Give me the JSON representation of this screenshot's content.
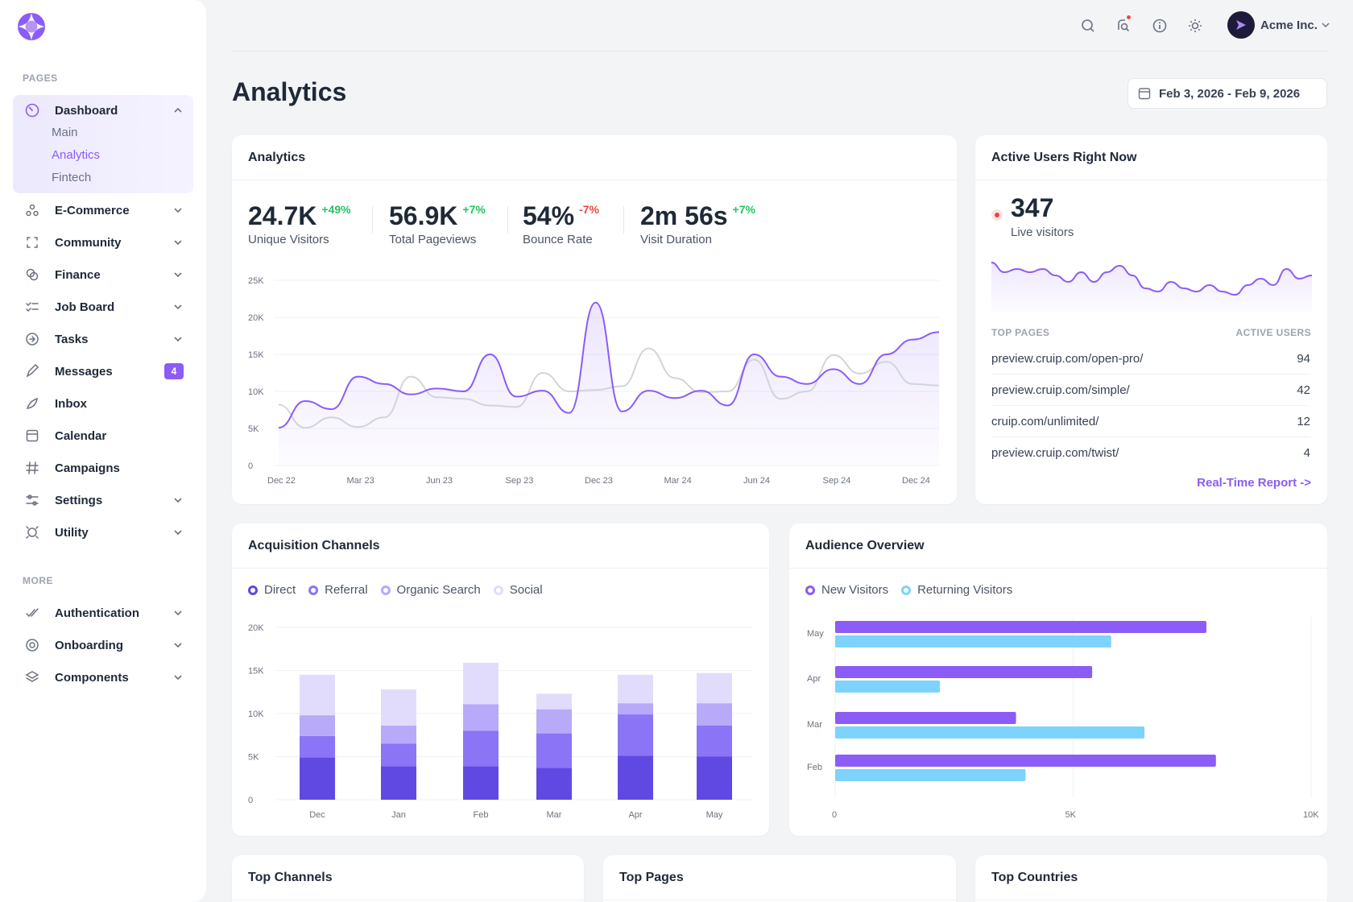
{
  "sidebar": {
    "sections": {
      "pages": "Pages",
      "more": "More"
    },
    "dashboard": {
      "label": "Dashboard",
      "sub": [
        "Main",
        "Analytics",
        "Fintech"
      ]
    },
    "items": [
      {
        "label": "E-Commerce",
        "icon": "ecommerce-icon"
      },
      {
        "label": "Community",
        "icon": "community-icon"
      },
      {
        "label": "Finance",
        "icon": "finance-icon"
      },
      {
        "label": "Job Board",
        "icon": "job-board-icon"
      },
      {
        "label": "Tasks",
        "icon": "tasks-icon"
      },
      {
        "label": "Messages",
        "icon": "messages-icon",
        "badge": "4"
      },
      {
        "label": "Inbox",
        "icon": "inbox-icon"
      },
      {
        "label": "Calendar",
        "icon": "calendar-icon"
      },
      {
        "label": "Campaigns",
        "icon": "campaigns-icon"
      },
      {
        "label": "Settings",
        "icon": "settings-icon"
      },
      {
        "label": "Utility",
        "icon": "utility-icon"
      }
    ],
    "more_items": [
      {
        "label": "Authentication",
        "icon": "authentication-icon"
      },
      {
        "label": "Onboarding",
        "icon": "onboarding-icon"
      },
      {
        "label": "Components",
        "icon": "components-icon"
      }
    ]
  },
  "header": {
    "account": "Acme Inc.",
    "accent": "#8b5cf6"
  },
  "page": {
    "title": "Analytics",
    "date_range": "Feb 3, 2026 - Feb 9, 2026"
  },
  "analytics_card": {
    "title": "Analytics",
    "stats": [
      {
        "value": "24.7K",
        "delta": "+49%",
        "label": "Unique Visitors",
        "trend": "up"
      },
      {
        "value": "56.9K",
        "delta": "+7%",
        "label": "Total Pageviews",
        "trend": "up"
      },
      {
        "value": "54%",
        "delta": "-7%",
        "label": "Bounce Rate",
        "trend": "down"
      },
      {
        "value": "2m 56s",
        "delta": "+7%",
        "label": "Visit Duration",
        "trend": "up"
      }
    ]
  },
  "active_users": {
    "title": "Active Users Right Now",
    "count": "347",
    "label": "Live visitors",
    "col_pages": "Top Pages",
    "col_users": "Active Users",
    "rows": [
      {
        "page": "preview.cruip.com/open-pro/",
        "users": "94"
      },
      {
        "page": "preview.cruip.com/simple/",
        "users": "42"
      },
      {
        "page": "cruip.com/unlimited/",
        "users": "12"
      },
      {
        "page": "preview.cruip.com/twist/",
        "users": "4"
      }
    ],
    "link": "Real-Time Report ->"
  },
  "acquisition": {
    "title": "Acquisition Channels"
  },
  "audience": {
    "title": "Audience Overview"
  },
  "bottom": {
    "top_channels": "Top Channels",
    "top_pages": "Top Pages",
    "top_countries": "Top Countries"
  },
  "chart_data": [
    {
      "type": "area",
      "ylim": [
        0,
        25000
      ],
      "yticks": [
        "0",
        "5K",
        "10K",
        "15K",
        "20K",
        "25K"
      ],
      "xticks": [
        "Dec 22",
        "Mar 23",
        "Jun 23",
        "Sep 23",
        "Dec 23",
        "Mar 24",
        "Jun 24",
        "Sep 24",
        "Dec 24"
      ],
      "series": [
        {
          "name": "",
          "color": "#8b5cf6",
          "values": [
            5100,
            8700,
            7600,
            12000,
            11000,
            9600,
            10400,
            10000,
            15000,
            9300,
            10100,
            7100,
            22000,
            7300,
            10100,
            9100,
            10100,
            8100,
            15000,
            12000,
            11000,
            13000,
            11000,
            15000,
            17000,
            18000
          ]
        },
        {
          "name": "",
          "color": "#d1d5db",
          "values": [
            8200,
            5100,
            6500,
            5200,
            6500,
            12000,
            9200,
            9000,
            8100,
            7900,
            12500,
            10000,
            10200,
            10700,
            15800,
            11800,
            9900,
            10000,
            14300,
            9000,
            10000,
            14900,
            12400,
            14000,
            11000,
            10800
          ]
        }
      ]
    },
    {
      "type": "line",
      "values": [
        14,
        11,
        12,
        11,
        12,
        10,
        8,
        11,
        8,
        11,
        13,
        10,
        6,
        5,
        8,
        6,
        5,
        7,
        5,
        4,
        7,
        9,
        7,
        12,
        9,
        10
      ]
    },
    {
      "type": "bar",
      "stacked": true,
      "ylim": [
        0,
        20000
      ],
      "yticks": [
        "0",
        "5K",
        "10K",
        "15K",
        "20K"
      ],
      "categories": [
        "Dec",
        "Jan",
        "Feb",
        "Mar",
        "Apr",
        "May"
      ],
      "series": [
        {
          "name": "Direct",
          "color": "#6049e3",
          "values": [
            4900,
            3900,
            3900,
            3700,
            5100,
            5000
          ]
        },
        {
          "name": "Referral",
          "color": "#8b74f5",
          "values": [
            2500,
            2600,
            4100,
            4000,
            4800,
            3600
          ]
        },
        {
          "name": "Organic Search",
          "color": "#b8aaf8",
          "values": [
            2400,
            2100,
            3100,
            2800,
            1300,
            2600
          ]
        },
        {
          "name": "Social",
          "color": "#e2dcfc",
          "values": [
            4700,
            4200,
            4800,
            1800,
            3300,
            3500
          ]
        }
      ]
    },
    {
      "type": "bar",
      "orientation": "horizontal",
      "xlim": [
        0,
        10000
      ],
      "xticks": [
        "0",
        "5K",
        "10K"
      ],
      "categories": [
        "May",
        "Apr",
        "Mar",
        "Feb"
      ],
      "series": [
        {
          "name": "New Visitors",
          "color": "#8b5cf6",
          "values": [
            7800,
            5400,
            3800,
            8000
          ]
        },
        {
          "name": "Returning Visitors",
          "color": "#7dd3fc",
          "values": [
            5800,
            2200,
            6500,
            4000
          ]
        }
      ]
    }
  ]
}
